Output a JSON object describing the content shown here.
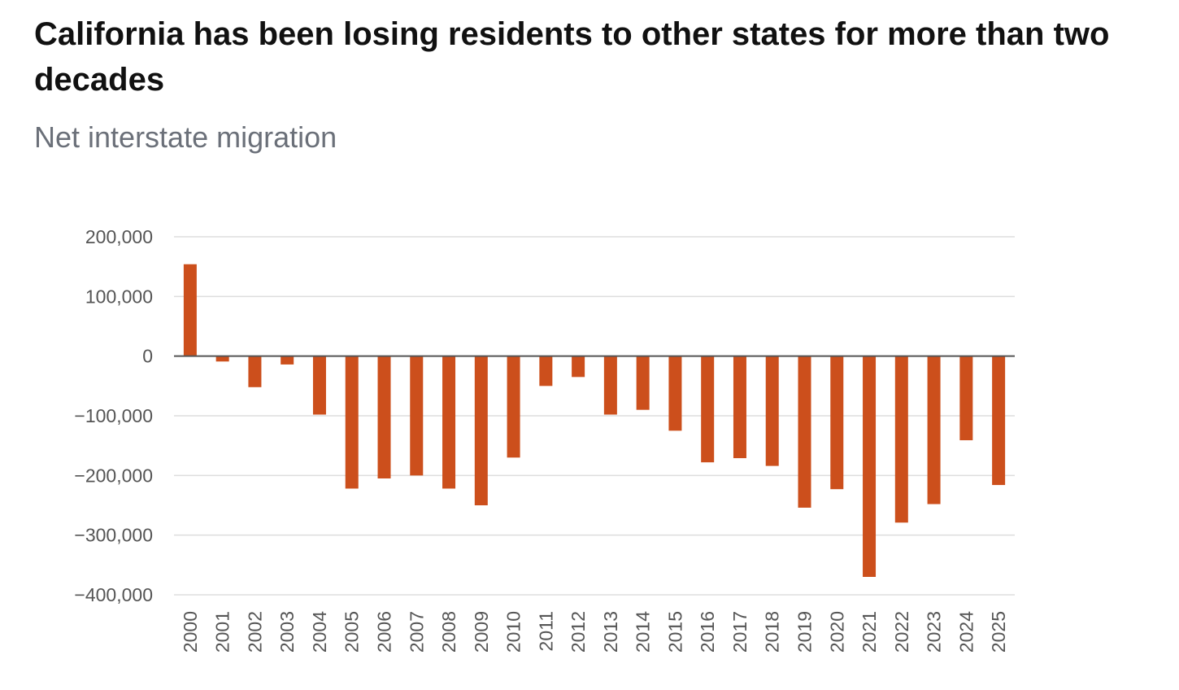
{
  "chart_data": {
    "type": "bar",
    "title": "California has been losing residents to other states for more than two decades",
    "subtitle": "Net interstate migration",
    "xlabel": "",
    "ylabel": "",
    "ylim": [
      -400000,
      200000
    ],
    "yticks": [
      200000,
      100000,
      0,
      -100000,
      -200000,
      -300000,
      -400000
    ],
    "ytick_labels": [
      "200,000",
      "100,000",
      "0",
      "−100,000",
      "−200,000",
      "−300,000",
      "−400,000"
    ],
    "grid": true,
    "bar_color": "#cc4f1c",
    "categories": [
      "2000",
      "2001",
      "2002",
      "2003",
      "2004",
      "2005",
      "2006",
      "2007",
      "2008",
      "2009",
      "2010",
      "2011",
      "2012",
      "2013",
      "2014",
      "2015",
      "2016",
      "2017",
      "2018",
      "2019",
      "2020",
      "2021",
      "2022",
      "2023",
      "2024",
      "2025"
    ],
    "values": [
      154000,
      -9000,
      -52000,
      -14000,
      -98000,
      -222000,
      -205000,
      -200000,
      -222000,
      -250000,
      -170000,
      -50000,
      -35000,
      -98000,
      -90000,
      -125000,
      -178000,
      -171000,
      -184000,
      -254000,
      -223000,
      -370000,
      -279000,
      -248000,
      -141000,
      -216000
    ]
  }
}
